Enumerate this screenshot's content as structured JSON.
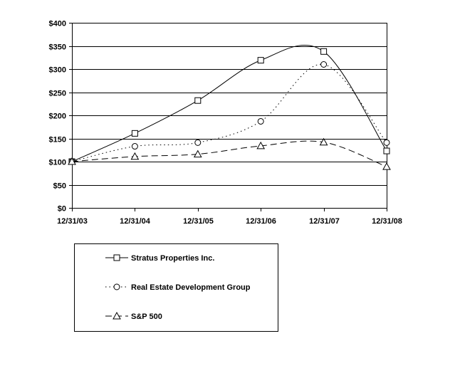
{
  "chart_data": {
    "type": "line",
    "title": "",
    "xlabel": "",
    "ylabel": "",
    "categories": [
      "12/31/03",
      "12/31/04",
      "12/31/05",
      "12/31/06",
      "12/31/07",
      "12/31/08"
    ],
    "ylim": [
      0,
      400
    ],
    "yticks": [
      0,
      50,
      100,
      150,
      200,
      250,
      300,
      350,
      400
    ],
    "ytick_labels": [
      "$0",
      "$50",
      "$100",
      "$150",
      "$200",
      "$250",
      "$300",
      "$350",
      "$400"
    ],
    "grid": "horizontal",
    "smoothed": true,
    "legend_position": "bottom-left",
    "series": [
      {
        "name": "Stratus Properties Inc.",
        "marker": "square",
        "line": "solid",
        "values": [
          100,
          161,
          232,
          319,
          338,
          123
        ]
      },
      {
        "name": "Real Estate Development Group",
        "marker": "circle",
        "line": "dotted",
        "values": [
          100,
          133,
          141,
          187,
          310,
          141
        ]
      },
      {
        "name": "S&P 500",
        "marker": "triangle",
        "line": "dashed",
        "values": [
          100,
          111,
          116,
          134,
          142,
          89
        ]
      }
    ],
    "colors": {
      "line": "#000000",
      "background": "#ffffff"
    }
  }
}
